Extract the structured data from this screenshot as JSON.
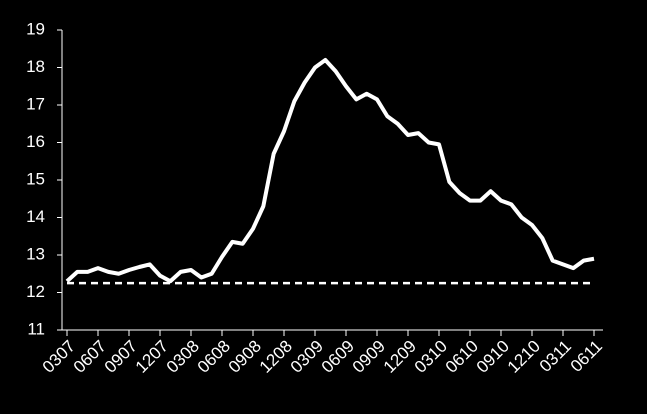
{
  "chart_data": {
    "type": "line",
    "categories": [
      "0307",
      null,
      null,
      "0607",
      null,
      null,
      "0907",
      null,
      null,
      "1207",
      null,
      null,
      "0308",
      null,
      null,
      "0608",
      null,
      null,
      "0908",
      null,
      null,
      "1208",
      null,
      null,
      "0309",
      null,
      null,
      "0609",
      null,
      null,
      "0909",
      null,
      null,
      "1209",
      null,
      null,
      "0310",
      null,
      null,
      "0610",
      null,
      null,
      "0910",
      null,
      null,
      "1210",
      null,
      null,
      "0311",
      null,
      null,
      "0611"
    ],
    "series": [
      {
        "color": "#ffffff",
        "style": "solid",
        "values": [
          12.3,
          12.55,
          12.55,
          12.65,
          12.55,
          12.5,
          12.6,
          12.68,
          12.75,
          12.45,
          12.3,
          12.55,
          12.6,
          12.4,
          12.5,
          12.95,
          13.35,
          13.3,
          13.7,
          14.3,
          15.7,
          16.3,
          17.1,
          17.6,
          18.0,
          18.2,
          17.9,
          17.5,
          17.15,
          17.3,
          17.15,
          16.7,
          16.5,
          16.2,
          16.25,
          16.0,
          15.95,
          14.95,
          14.65,
          14.45,
          14.45,
          14.7,
          14.45,
          14.35,
          14.0,
          13.8,
          13.45,
          12.85,
          12.75,
          12.65,
          12.85,
          12.9
        ]
      },
      {
        "color": "#ffffff",
        "style": "dashed",
        "values": [
          12.25,
          12.25,
          12.25,
          12.25,
          12.25,
          12.25,
          12.25,
          12.25,
          12.25,
          12.25,
          12.25,
          12.25,
          12.25,
          12.25,
          12.25,
          12.25,
          12.25,
          12.25,
          12.25,
          12.25,
          12.25,
          12.25,
          12.25,
          12.25,
          12.25,
          12.25,
          12.25,
          12.25,
          12.25,
          12.25,
          12.25,
          12.25,
          12.25,
          12.25,
          12.25,
          12.25,
          12.25,
          12.25,
          12.25,
          12.25,
          12.25,
          12.25,
          12.25,
          12.25,
          12.25,
          12.25,
          12.25,
          12.25,
          12.25,
          12.25,
          12.25,
          12.25
        ]
      }
    ],
    "ylim": [
      11,
      19
    ],
    "yticks": [
      11,
      12,
      13,
      14,
      15,
      16,
      17,
      18,
      19
    ],
    "grid": false
  }
}
